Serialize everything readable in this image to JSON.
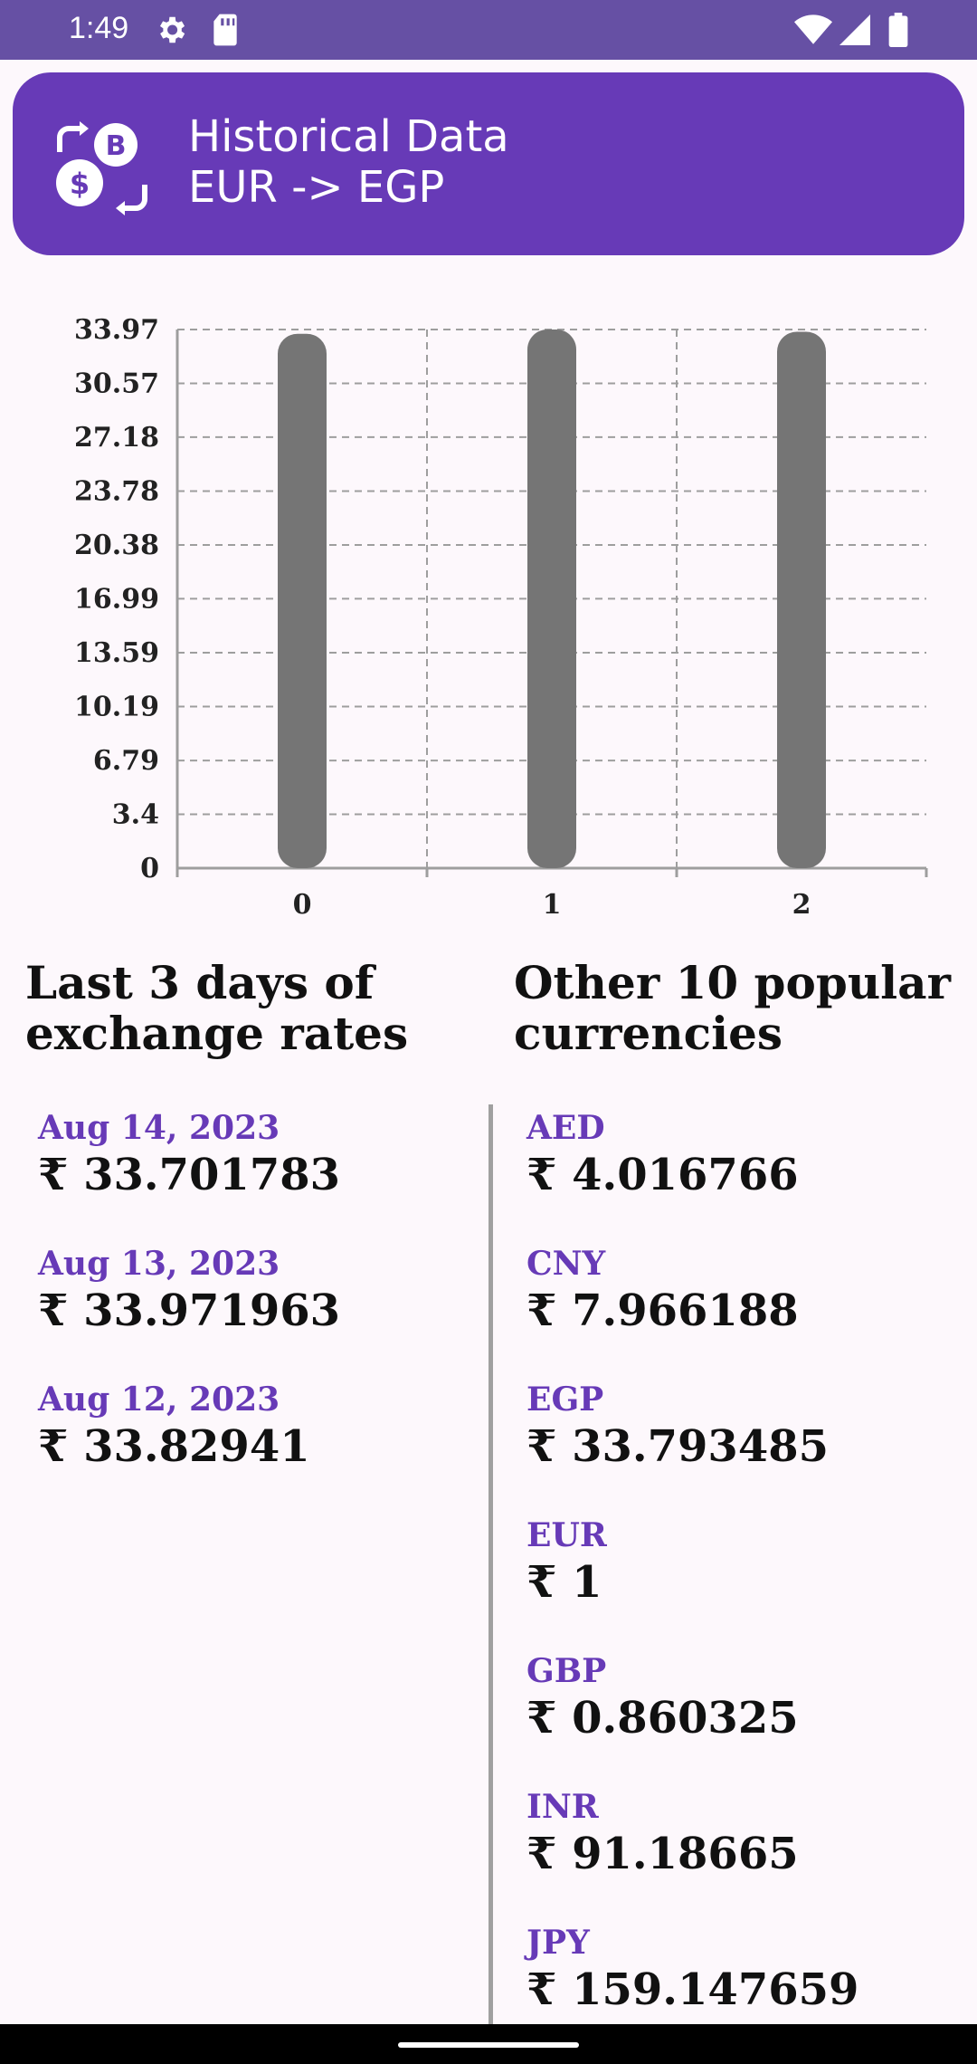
{
  "status_bar": {
    "time": "1:49",
    "icons": [
      "gear-icon",
      "sd-card-icon",
      "wifi-icon",
      "signal-icon",
      "battery-icon"
    ]
  },
  "header": {
    "title": "Historical Data",
    "subtitle": "EUR -> EGP",
    "logo_icon": "currency-exchange-icon",
    "background": "#673ab7"
  },
  "chart_data": {
    "type": "bar",
    "categories": [
      "0",
      "1",
      "2"
    ],
    "values": [
      33.701783,
      33.971963,
      33.82941
    ],
    "ylim": [
      0,
      33.97
    ],
    "yticks": [
      "0",
      "3.4",
      "6.79",
      "10.19",
      "13.59",
      "16.99",
      "20.38",
      "23.78",
      "27.18",
      "30.57",
      "33.97"
    ],
    "grid": true,
    "bar_color": "#757575"
  },
  "left_section": {
    "heading_line1": "Last 3 days of",
    "heading_line2": "exchange rates",
    "items": [
      {
        "label": "Aug 14, 2023",
        "value": "₹ 33.701783"
      },
      {
        "label": "Aug 13, 2023",
        "value": "₹ 33.971963"
      },
      {
        "label": "Aug 12, 2023",
        "value": "₹ 33.82941"
      }
    ]
  },
  "right_section": {
    "heading_line1": "Other 10 popular",
    "heading_line2": "currencies",
    "items": [
      {
        "label": "AED",
        "value": "₹ 4.016766"
      },
      {
        "label": "CNY",
        "value": "₹ 7.966188"
      },
      {
        "label": "EGP",
        "value": "₹ 33.793485"
      },
      {
        "label": "EUR",
        "value": "₹ 1"
      },
      {
        "label": "GBP",
        "value": "₹ 0.860325"
      },
      {
        "label": "INR",
        "value": "₹ 91.18665"
      },
      {
        "label": "JPY",
        "value": "₹ 159.147659"
      }
    ]
  },
  "colors": {
    "accent": "#673ab7",
    "status_bar": "#6650a4",
    "divider": "#a0a0a0"
  }
}
